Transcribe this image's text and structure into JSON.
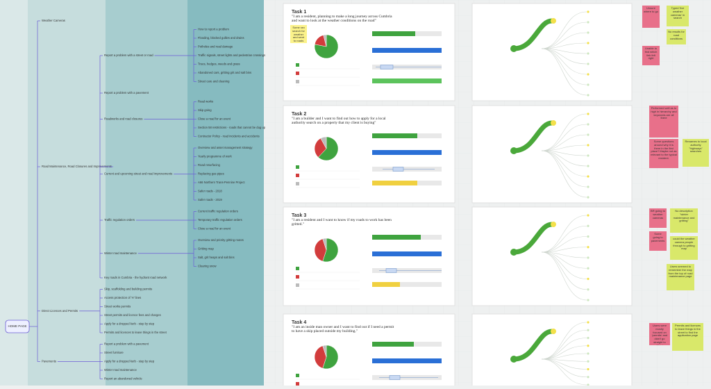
{
  "sitemap": {
    "root": "HOME PAGE",
    "branches": [
      {
        "label": "Weather Cameras"
      },
      {
        "label": "Road Maintenance, Road Closures and Improvements",
        "children": [
          {
            "label": "Report a problem with a street or road",
            "children": [
              {
                "label": "How to report a problem"
              },
              {
                "label": "Flooding, blocked gullies and drains"
              },
              {
                "label": "Potholes and road damage"
              },
              {
                "label": "Traffic signals, street lights and pedestrian crossings"
              },
              {
                "label": "Trees, hedges, weeds and grass"
              },
              {
                "label": "Abandoned cars, gritting grit and salt bins"
              },
              {
                "label": "Street care and cleaning"
              }
            ]
          },
          {
            "label": "Report a problem with a pavement"
          },
          {
            "label": "Roadworks and road closures",
            "children": [
              {
                "label": "Road works"
              },
              {
                "label": "Skip going"
              },
              {
                "label": "Close a road for an event"
              },
              {
                "label": "Section 58 restrictions - roads that cannot be dug up"
              },
              {
                "label": "Contractor Policy - road incidents and accidents"
              }
            ]
          },
          {
            "label": "Current and upcoming street and road improvements",
            "children": [
              {
                "label": "Overview and asset management strategy"
              },
              {
                "label": "Yearly programme of work"
              },
              {
                "label": "Road resurfacing"
              },
              {
                "label": "Replacing gas pipes"
              },
              {
                "label": "A66 Northern Trans-Pennine Project"
              },
              {
                "label": "Safer roads - 2018"
              },
              {
                "label": "Safer roads - 2019"
              }
            ]
          },
          {
            "label": "Traffic regulation orders",
            "children": [
              {
                "label": "Current traffic regulation orders"
              },
              {
                "label": "Temporary traffic regulation orders"
              },
              {
                "label": "Close a road for an event"
              }
            ]
          },
          {
            "label": "Winter road maintenance",
            "children": [
              {
                "label": "Overview and priority gritting routes"
              },
              {
                "label": "Gritting map"
              },
              {
                "label": "Salt, grit heaps and salt bins"
              },
              {
                "label": "Clearing snow"
              }
            ]
          },
          {
            "label": "Key roads in Cumbria - the hydrant road network"
          }
        ]
      },
      {
        "label": "Direct Licences and Permits",
        "children": [
          {
            "label": "Skip, scaffolding and building permits"
          },
          {
            "label": "Access protection of 'H' lines"
          },
          {
            "label": "Street works permits"
          },
          {
            "label": "Street permits and licence fees and charges"
          },
          {
            "label": "Apply for a dropped kerb - step by step"
          },
          {
            "label": "Permits and licences to leave things in the street"
          }
        ]
      },
      {
        "label": "Pavements",
        "children": [
          {
            "label": "Report a problem with a pavement"
          },
          {
            "label": "Street furniture"
          },
          {
            "label": "Apply for a dropped kerb - step by step"
          },
          {
            "label": "Winter road maintenance"
          },
          {
            "label": "Report an abandoned vehicle"
          }
        ]
      }
    ]
  },
  "tasks": [
    {
      "title": "Task 1",
      "question": "\"I am a resident, planning to make a long journey across Cumbria and want to look at the weather conditions on the road\"",
      "pie": {
        "values": [
          78,
          18,
          4
        ],
        "colors": [
          "#3fa33f",
          "#d23c3c",
          "#bbbbbb"
        ]
      },
      "bars": [
        {
          "value": 62,
          "color": "#3fa33f"
        },
        {
          "value": 100,
          "color": "#2a6fd6"
        },
        {
          "box": [
            5,
            12,
            30,
            100
          ]
        },
        {
          "value": 100,
          "color": "#5cc35c"
        }
      ],
      "notes": [
        {
          "text": "Some ran search for weather and went to roads",
          "color": "#fbf28a"
        },
        {
          "text": "Unsure where to go",
          "color": "#e8708a"
        },
        {
          "text": "Typed 'live weather cameras' in search",
          "color": "#d9e86a"
        },
        {
          "text": "No results for road conditions",
          "color": "#d9e86a"
        },
        {
          "text": "Unable to find which link felt right",
          "color": "#e8708a"
        }
      ]
    },
    {
      "title": "Task 2",
      "question": "\"I am a builder and I want to find out how to apply for a local authority search on a property that my client is buying\"",
      "pie": {
        "values": [
          62,
          30,
          8
        ],
        "colors": [
          "#3fa33f",
          "#d23c3c",
          "#bbbbbb"
        ]
      },
      "bars": [
        {
          "value": 65,
          "color": "#3fa33f"
        },
        {
          "value": 100,
          "color": "#2a6fd6"
        },
        {
          "box": [
            15,
            30,
            45,
            90
          ]
        },
        {
          "value": 65,
          "color": "#f0d040"
        }
      ],
      "notes": [
        {
          "text": "Performed well as to high in hierarchy and keywords are all there",
          "color": "#e8708a"
        },
        {
          "text": "Some questions around why it is there in the first place? Maybe not as relevant to the typical resident.",
          "color": "#e8708a"
        },
        {
          "text": "Renames to local authority \"highways\" searches",
          "color": "#d9e86a"
        }
      ]
    },
    {
      "title": "Task 3",
      "question": "\"I am a resident and I want to know if my roads to work has been gritted.\"",
      "pie": {
        "values": [
          55,
          40,
          5
        ],
        "colors": [
          "#3fa33f",
          "#d23c3c",
          "#bbbbbb"
        ]
      },
      "bars": [
        {
          "value": 70,
          "color": "#3fa33f"
        },
        {
          "value": 100,
          "color": "#2a6fd6"
        },
        {
          "box": [
            10,
            20,
            35,
            100
          ]
        },
        {
          "value": 40,
          "color": "#f0d040"
        }
      ],
      "notes": [
        {
          "text": "BR going to weather cameras",
          "color": "#e8708a"
        },
        {
          "text": "No description \"winter maintenance and gritting\"",
          "color": "#d9e86a"
        },
        {
          "text": "Some going to pavements",
          "color": "#e8708a"
        },
        {
          "text": "could the weather camera people through to gritting map",
          "color": "#d9e86a"
        },
        {
          "text": "Users seemed to remember the map from the top of road maintenance page",
          "color": "#d9e86a"
        }
      ]
    },
    {
      "title": "Task 4",
      "question": "\"I am an inside man owner and I want to find out if I need a permit to have a skip placed outside my building.\"",
      "pie": {
        "values": [
          55,
          40,
          5
        ],
        "colors": [
          "#3fa33f",
          "#d23c3c",
          "#bbbbbb"
        ]
      },
      "bars": [
        {
          "value": 60,
          "color": "#3fa33f"
        },
        {
          "value": 100,
          "color": "#2a6fd6"
        },
        {
          "box": [
            10,
            25,
            40,
            95
          ]
        }
      ],
      "notes": [
        {
          "text": "Users were mostly focused on 'permits' and didn't go straight to 'Skip'",
          "color": "#e8708a"
        },
        {
          "text": "Permits and licences to leave things in the street to find the application page",
          "color": "#d9e86a"
        }
      ]
    }
  ]
}
